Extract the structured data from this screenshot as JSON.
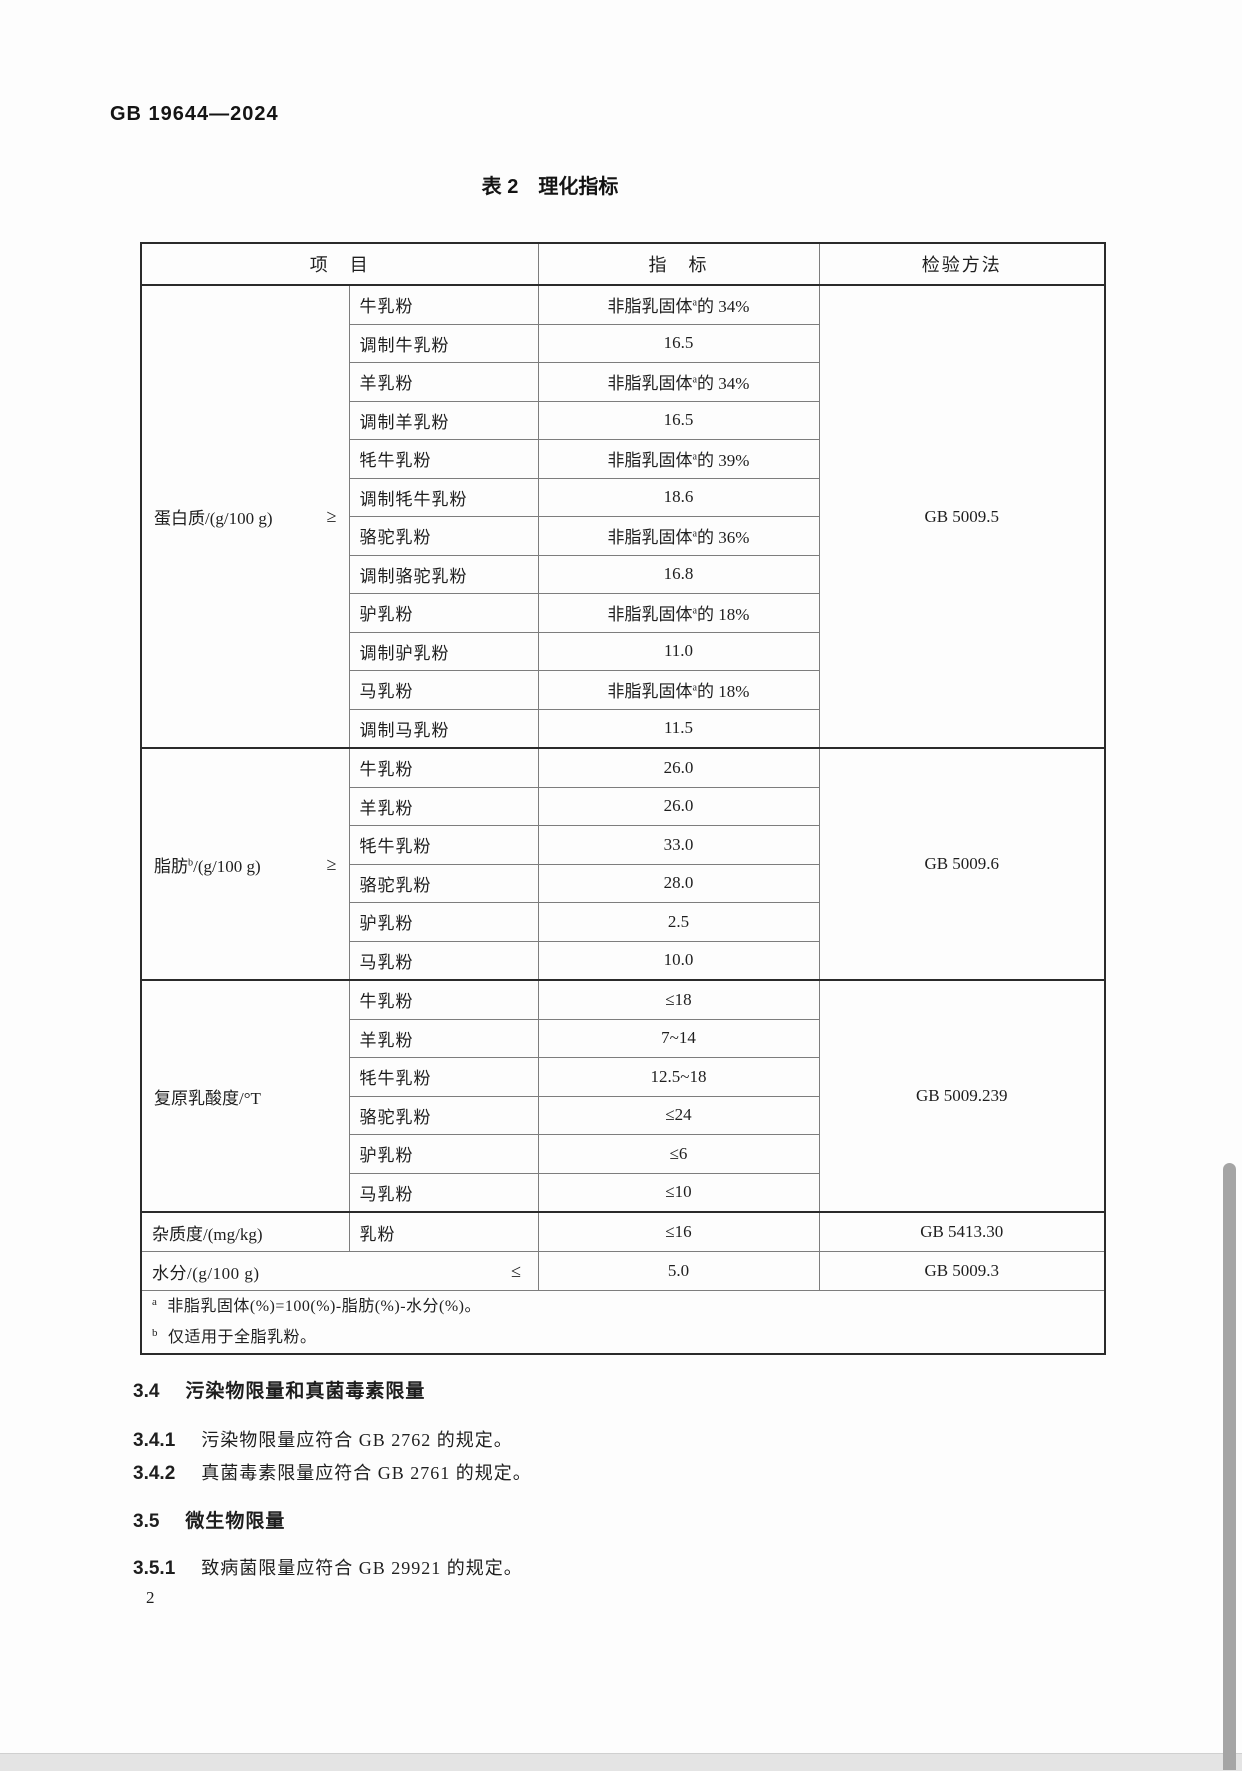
{
  "page": {
    "doc_number": "GB 19644—2024",
    "page_number": "2"
  },
  "table": {
    "title": "表 2　理化指标",
    "headers": {
      "item": "项　目",
      "indicator": "指　标",
      "method": "检验方法"
    },
    "groups": [
      {
        "label": "蛋白质/(g/100 g)",
        "symbol": "≥",
        "method": "GB 5009.5",
        "rows": [
          {
            "item": "牛乳粉",
            "value": "非脂乳固体^a的 34%"
          },
          {
            "item": "调制牛乳粉",
            "value": "16.5"
          },
          {
            "item": "羊乳粉",
            "value": "非脂乳固体^a的 34%"
          },
          {
            "item": "调制羊乳粉",
            "value": "16.5"
          },
          {
            "item": "牦牛乳粉",
            "value": "非脂乳固体^a的 39%"
          },
          {
            "item": "调制牦牛乳粉",
            "value": "18.6"
          },
          {
            "item": "骆驼乳粉",
            "value": "非脂乳固体^a的 36%"
          },
          {
            "item": "调制骆驼乳粉",
            "value": "16.8"
          },
          {
            "item": "驴乳粉",
            "value": "非脂乳固体^a的 18%"
          },
          {
            "item": "调制驴乳粉",
            "value": "11.0"
          },
          {
            "item": "马乳粉",
            "value": "非脂乳固体^a的 18%"
          },
          {
            "item": "调制马乳粉",
            "value": "11.5"
          }
        ]
      },
      {
        "label": "脂肪^b/(g/100 g)",
        "symbol": "≥",
        "method": "GB 5009.6",
        "rows": [
          {
            "item": "牛乳粉",
            "value": "26.0"
          },
          {
            "item": "羊乳粉",
            "value": "26.0"
          },
          {
            "item": "牦牛乳粉",
            "value": "33.0"
          },
          {
            "item": "骆驼乳粉",
            "value": "28.0"
          },
          {
            "item": "驴乳粉",
            "value": "2.5"
          },
          {
            "item": "马乳粉",
            "value": "10.0"
          }
        ]
      },
      {
        "label": "复原乳酸度/°T",
        "symbol": "",
        "method": "GB 5009.239",
        "rows": [
          {
            "item": "牛乳粉",
            "value": "≤18"
          },
          {
            "item": "羊乳粉",
            "value": "7~14"
          },
          {
            "item": "牦牛乳粉",
            "value": "12.5~18"
          },
          {
            "item": "骆驼乳粉",
            "value": "≤24"
          },
          {
            "item": "驴乳粉",
            "value": "≤6"
          },
          {
            "item": "马乳粉",
            "value": "≤10"
          }
        ]
      }
    ],
    "simple_rows": [
      {
        "label": "杂质度/(mg/kg)",
        "item": "乳粉",
        "value": "≤16",
        "method": "GB 5413.30"
      }
    ],
    "moisture_row": {
      "label": "水分/(g/100 g)",
      "symbol": "≤",
      "value": "5.0",
      "method": "GB 5009.3"
    },
    "footnotes": [
      {
        "marker": "a",
        "text": "非脂乳固体(%)=100(%)-脂肪(%)-水分(%)。"
      },
      {
        "marker": "b",
        "text": "仅适用于全脂乳粉。"
      }
    ]
  },
  "sections": [
    {
      "number": "3.4",
      "text": "污染物限量和真菌毒素限量"
    },
    {
      "number": "3.4.1",
      "text": "污染物限量应符合 GB 2762 的规定。"
    },
    {
      "number": "3.4.2",
      "text": "真菌毒素限量应符合 GB 2761 的规定。"
    },
    {
      "number": "3.5",
      "text": "微生物限量"
    },
    {
      "number": "3.5.1",
      "text": "致病菌限量应符合 GB 29921 的规定。"
    }
  ]
}
